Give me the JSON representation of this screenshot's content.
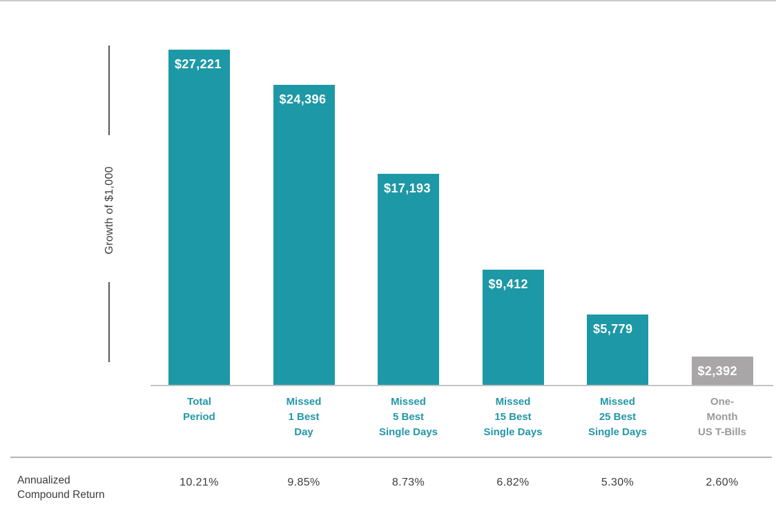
{
  "page": {
    "background": "#ffffff"
  },
  "chart_data": {
    "type": "bar",
    "title": "",
    "xlabel": "",
    "ylabel": "Growth of $1,000",
    "ylim": [
      0,
      27221
    ],
    "grid": false,
    "legend": "none",
    "categories": [
      [
        "Total",
        "Period"
      ],
      [
        "Missed",
        "1 Best",
        "Day"
      ],
      [
        "Missed",
        "5 Best",
        "Single Days"
      ],
      [
        "Missed",
        "15 Best",
        "Single Days"
      ],
      [
        "Missed",
        "25 Best",
        "Single Days"
      ],
      [
        "One-",
        "Month",
        "US T-Bills"
      ]
    ],
    "values": [
      27221,
      24396,
      17193,
      9412,
      5779,
      2392
    ],
    "value_labels": [
      "$27,221",
      "$24,396",
      "$17,193",
      "$9,412",
      "$5,779",
      "$2,392"
    ],
    "bar_color_keys": [
      "teal",
      "teal",
      "teal",
      "teal",
      "teal",
      "gray"
    ],
    "colors": {
      "bar_teal": "#1d98a6",
      "bar_gray": "#a8a6a7",
      "category_teal": "#2397a8",
      "category_gray": "#9b999a",
      "value_label_text": "#ffffff",
      "axis_line": "#55565a",
      "baseline": "#c4c4c4",
      "divider": "#b3b3b3",
      "text_dark": "#3b3b3b"
    },
    "footer": {
      "label_lines": [
        "Annualized",
        "Compound Return"
      ],
      "values": [
        "10.21%",
        "9.85%",
        "8.73%",
        "6.82%",
        "5.30%",
        "2.60%"
      ]
    }
  }
}
